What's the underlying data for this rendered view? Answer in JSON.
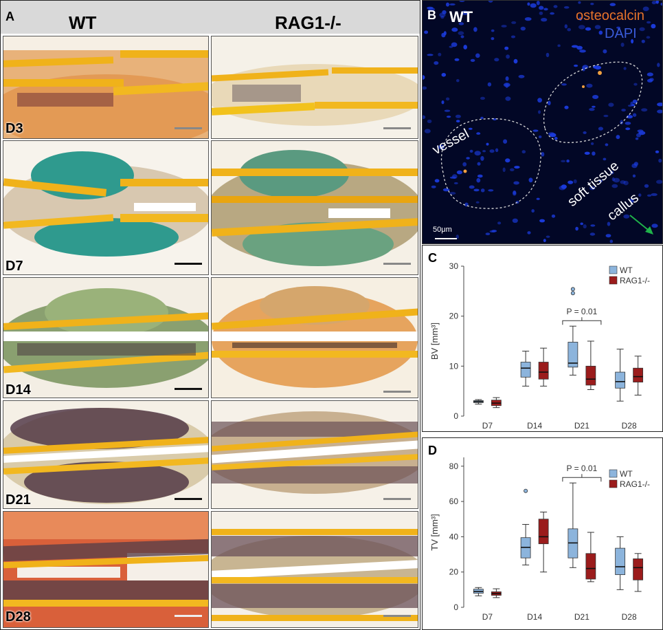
{
  "panelA": {
    "letter": "A",
    "columns": [
      "WT",
      "RAG1-/-"
    ],
    "rows": [
      "D3",
      "D7",
      "D14",
      "D21",
      "D28"
    ]
  },
  "panelB": {
    "letter": "B",
    "genotype": "WT",
    "legend": [
      {
        "label": "osteocalcin",
        "color": "#e8732a"
      },
      {
        "label": "DAPI",
        "color": "#3a5bd9"
      }
    ],
    "labels": {
      "vessel": "vessel",
      "soft_tissue": "soft tissue",
      "callus": "callus"
    },
    "scalebar": "50μm"
  },
  "chart_data": [
    {
      "panel": "C",
      "type": "boxplot",
      "ylabel": "BV [mm³]",
      "ylim": [
        0,
        30
      ],
      "yticks": [
        0,
        10,
        20,
        30
      ],
      "categories": [
        "D7",
        "D14",
        "D21",
        "D28"
      ],
      "legend": [
        "WT",
        "RAG1-/-"
      ],
      "colors": {
        "WT": "#8cb4dc",
        "RAG1-/-": "#9b1c1c"
      },
      "annotation": {
        "text": "P = 0.01",
        "category": "D21"
      },
      "series": [
        {
          "name": "WT",
          "boxes": [
            {
              "min": 2.4,
              "q1": 2.7,
              "median": 2.9,
              "q3": 3.1,
              "max": 3.3,
              "outliers": []
            },
            {
              "min": 6.0,
              "q1": 7.8,
              "median": 9.6,
              "q3": 10.8,
              "max": 13.0,
              "outliers": []
            },
            {
              "min": 8.2,
              "q1": 9.8,
              "median": 10.6,
              "q3": 14.8,
              "max": 18.0,
              "outliers": [
                24.6,
                25.4
              ]
            },
            {
              "min": 3.0,
              "q1": 5.6,
              "median": 6.9,
              "q3": 8.8,
              "max": 13.4,
              "outliers": []
            }
          ]
        },
        {
          "name": "RAG1-/-",
          "boxes": [
            {
              "min": 1.7,
              "q1": 2.1,
              "median": 2.6,
              "q3": 3.2,
              "max": 3.7,
              "outliers": []
            },
            {
              "min": 6.0,
              "q1": 7.4,
              "median": 8.8,
              "q3": 10.8,
              "max": 13.6,
              "outliers": []
            },
            {
              "min": 5.3,
              "q1": 6.2,
              "median": 7.4,
              "q3": 10.0,
              "max": 15.0,
              "outliers": []
            },
            {
              "min": 4.2,
              "q1": 6.8,
              "median": 7.9,
              "q3": 9.6,
              "max": 12.0,
              "outliers": []
            }
          ]
        }
      ]
    },
    {
      "panel": "D",
      "type": "boxplot",
      "ylabel": "TV [mm³]",
      "ylim": [
        0,
        85
      ],
      "yticks": [
        0,
        20,
        40,
        60,
        80
      ],
      "categories": [
        "D7",
        "D14",
        "D21",
        "D28"
      ],
      "legend": [
        "WT",
        "RAG1-/-"
      ],
      "colors": {
        "WT": "#8cb4dc",
        "RAG1-/-": "#9b1c1c"
      },
      "annotation": {
        "text": "P = 0.01",
        "category": "D21"
      },
      "series": [
        {
          "name": "WT",
          "boxes": [
            {
              "min": 6.5,
              "q1": 8.0,
              "median": 9.0,
              "q3": 10.3,
              "max": 11.2,
              "outliers": []
            },
            {
              "min": 24.0,
              "q1": 28.0,
              "median": 34.0,
              "q3": 39.5,
              "max": 47.0,
              "outliers": [
                66.0
              ]
            },
            {
              "min": 22.5,
              "q1": 28.0,
              "median": 36.5,
              "q3": 44.5,
              "max": 70.5,
              "outliers": []
            },
            {
              "min": 10.0,
              "q1": 18.5,
              "median": 23.0,
              "q3": 33.5,
              "max": 40.0,
              "outliers": []
            }
          ]
        },
        {
          "name": "RAG1-/-",
          "boxes": [
            {
              "min": 5.5,
              "q1": 6.8,
              "median": 7.8,
              "q3": 8.8,
              "max": 10.5,
              "outliers": []
            },
            {
              "min": 20.0,
              "q1": 36.0,
              "median": 40.0,
              "q3": 50.0,
              "max": 54.0,
              "outliers": []
            },
            {
              "min": 14.5,
              "q1": 16.0,
              "median": 22.0,
              "q3": 30.5,
              "max": 42.5,
              "outliers": []
            },
            {
              "min": 9.0,
              "q1": 15.5,
              "median": 22.5,
              "q3": 27.5,
              "max": 30.5,
              "outliers": []
            }
          ]
        }
      ]
    }
  ]
}
